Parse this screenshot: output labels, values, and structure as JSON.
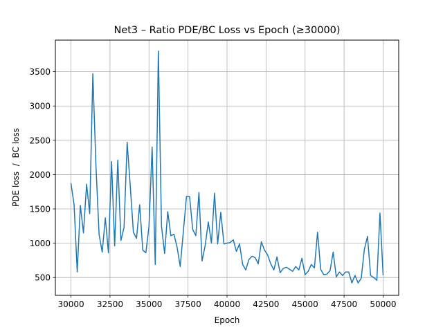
{
  "chart_data": {
    "type": "line",
    "title": "Net3 – Ratio PDE/BC Loss vs Epoch (≥30000)",
    "xlabel": "Epoch",
    "ylabel": "PDE loss  /  BC loss",
    "xlim": [
      29000,
      51000
    ],
    "ylim": [
      240,
      3960
    ],
    "x_ticks": [
      30000,
      32500,
      35000,
      37500,
      40000,
      42500,
      45000,
      47500,
      50000
    ],
    "y_ticks": [
      500,
      1000,
      1500,
      2000,
      2500,
      3000,
      3500
    ],
    "grid": true,
    "series": [
      {
        "color": "#1f77b4",
        "x": [
          30000,
          30200,
          30400,
          30600,
          30800,
          31000,
          31200,
          31400,
          31600,
          31800,
          32000,
          32200,
          32400,
          32600,
          32800,
          33000,
          33200,
          33400,
          33600,
          33800,
          34000,
          34200,
          34400,
          34600,
          34800,
          35000,
          35200,
          35400,
          35600,
          35800,
          36000,
          36200,
          36400,
          36600,
          36800,
          37000,
          37200,
          37400,
          37600,
          37800,
          38000,
          38200,
          38400,
          38600,
          38800,
          39000,
          39200,
          39400,
          39600,
          39800,
          40000,
          40200,
          40400,
          40600,
          40800,
          41000,
          41200,
          41400,
          41600,
          41800,
          42000,
          42200,
          42400,
          42600,
          42800,
          43000,
          43200,
          43400,
          43600,
          43800,
          44000,
          44200,
          44400,
          44600,
          44800,
          45000,
          45200,
          45400,
          45600,
          45800,
          46000,
          46200,
          46400,
          46600,
          46800,
          47000,
          47200,
          47400,
          47600,
          47800,
          48000,
          48200,
          48400,
          48600,
          48800,
          49000,
          49200,
          49400,
          49600,
          49800,
          50000
        ],
        "y": [
          1870,
          1560,
          580,
          1550,
          1150,
          1860,
          1430,
          3470,
          2130,
          1130,
          870,
          1370,
          860,
          2190,
          960,
          2210,
          1040,
          1230,
          2470,
          1830,
          1160,
          1070,
          1560,
          900,
          860,
          1250,
          2400,
          690,
          3800,
          1250,
          850,
          1460,
          1110,
          1130,
          940,
          660,
          1170,
          1680,
          1680,
          1200,
          1110,
          1740,
          740,
          970,
          1310,
          1000,
          1730,
          990,
          1450,
          990,
          1000,
          1010,
          1050,
          880,
          990,
          690,
          610,
          760,
          810,
          790,
          700,
          1020,
          900,
          830,
          700,
          610,
          800,
          570,
          630,
          650,
          620,
          590,
          660,
          610,
          780,
          540,
          590,
          690,
          640,
          1160,
          620,
          540,
          550,
          600,
          870,
          510,
          580,
          530,
          580,
          580,
          420,
          530,
          420,
          490,
          910,
          1100,
          530,
          500,
          460,
          1440,
          540
        ]
      }
    ]
  }
}
